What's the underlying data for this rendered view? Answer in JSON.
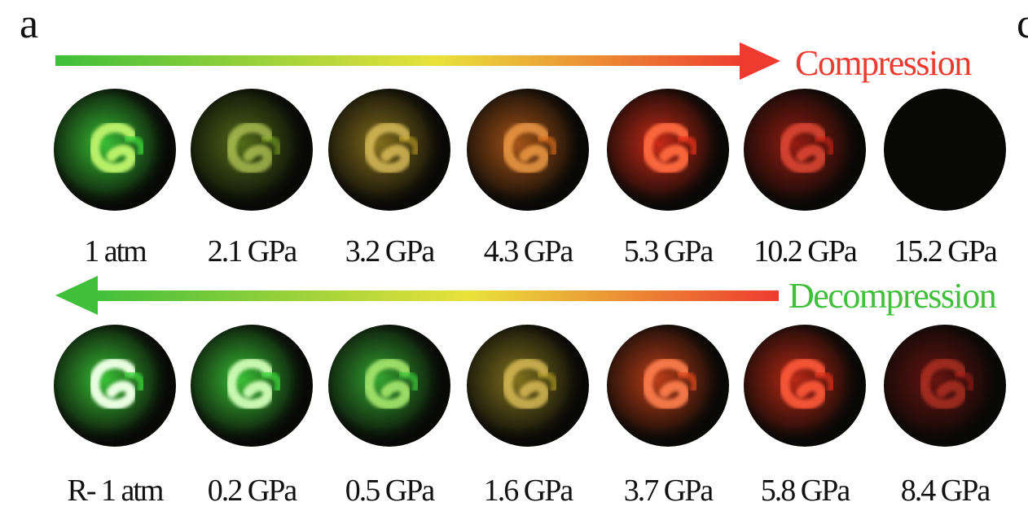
{
  "figure": {
    "panel_letter": "a",
    "cut_letter": "c"
  },
  "compression": {
    "label": "Compression",
    "color": "#ee3b2f",
    "arrow_gradient": [
      "#3fbf3a",
      "#e9e23a",
      "#ee3b2f"
    ],
    "samples": [
      {
        "pressure": "1 atm",
        "glow": "#3ed33a",
        "core": "#b8f06a",
        "intensity": 1.0
      },
      {
        "pressure": "2.1 GPa",
        "glow": "#8fbf2a",
        "core": "#d6e86a",
        "intensity": 0.6
      },
      {
        "pressure": "3.2 GPa",
        "glow": "#c9a82a",
        "core": "#f2d268",
        "intensity": 0.7
      },
      {
        "pressure": "4.3 GPa",
        "glow": "#e0701e",
        "core": "#f5a048",
        "intensity": 0.8
      },
      {
        "pressure": "5.3 GPa",
        "glow": "#e8301a",
        "core": "#ff6a40",
        "intensity": 0.95
      },
      {
        "pressure": "10.2 GPa",
        "glow": "#d42618",
        "core": "#f2503a",
        "intensity": 0.75
      },
      {
        "pressure": "15.2 GPa",
        "glow": "#000000",
        "core": "#000000",
        "intensity": 0.0
      }
    ]
  },
  "decompression": {
    "label": "Decompression",
    "color": "#3fbf3a",
    "arrow_gradient": [
      "#3fbf3a",
      "#e9e23a",
      "#ee3b2f"
    ],
    "samples": [
      {
        "pressure": "R- 1 atm",
        "glow": "#3ed33a",
        "core": "#e8ffe0",
        "intensity": 1.0
      },
      {
        "pressure": "0.2 GPa",
        "glow": "#3ed33a",
        "core": "#c8f7b0",
        "intensity": 1.0
      },
      {
        "pressure": "0.5 GPa",
        "glow": "#3ec83a",
        "core": "#a8e870",
        "intensity": 0.9
      },
      {
        "pressure": "1.6 GPa",
        "glow": "#b9a42a",
        "core": "#e8c860",
        "intensity": 0.75
      },
      {
        "pressure": "3.7 GPa",
        "glow": "#e24a1c",
        "core": "#ff8050",
        "intensity": 0.9
      },
      {
        "pressure": "5.8 GPa",
        "glow": "#e0301a",
        "core": "#ff5a3a",
        "intensity": 0.9
      },
      {
        "pressure": "8.4 GPa",
        "glow": "#c4201a",
        "core": "#e0402e",
        "intensity": 0.55
      }
    ]
  }
}
